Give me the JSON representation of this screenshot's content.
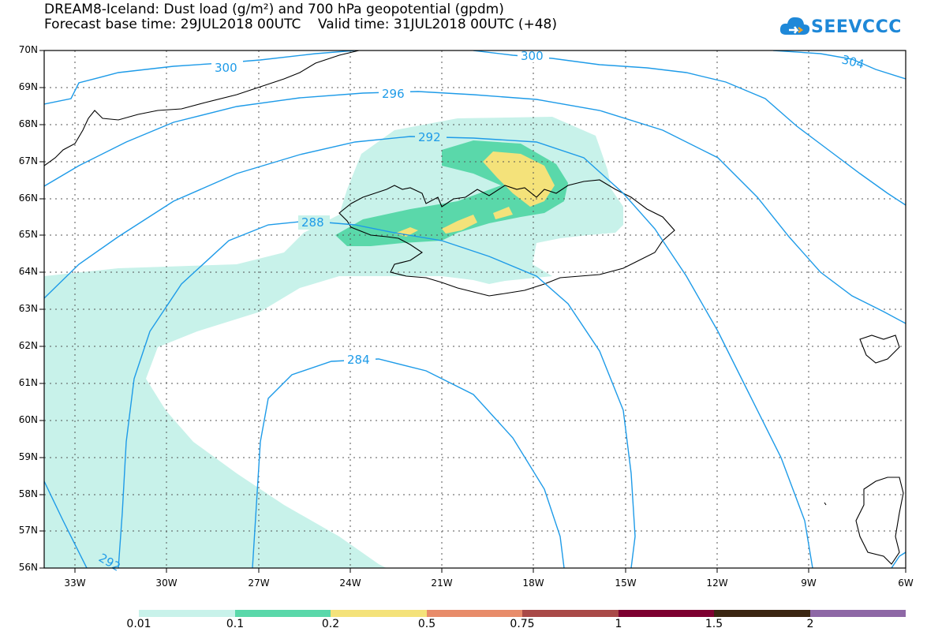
{
  "title_line1": "DREAM8-Iceland: Dust load (g/m²) and 700 hPa geopotential (gpdm)",
  "title_line2": "Forecast base time: 29JUL2018 00UTC    Valid time: 31JUL2018 00UTC (+48)",
  "logo_text": "SEEVCCC",
  "map": {
    "lat_labels": [
      "70N",
      "69N",
      "68N",
      "67N",
      "66N",
      "65N",
      "64N",
      "63N",
      "62N",
      "61N",
      "60N",
      "59N",
      "58N",
      "57N",
      "56N"
    ],
    "lon_labels": [
      "33W",
      "30W",
      "27W",
      "24W",
      "21W",
      "18W",
      "15W",
      "12W",
      "9W",
      "6W"
    ],
    "contour_labels": [
      "300",
      "300",
      "304",
      "296",
      "292",
      "288",
      "284",
      "292"
    ],
    "colors": {
      "contour": "#1e9be8",
      "coast": "#000000",
      "level_0_01": "#c8f2ea",
      "level_0_1": "#5ad8aa",
      "level_0_2": "#f4e27a"
    }
  },
  "colorbar": {
    "labels": [
      "0.01",
      "0.1",
      "0.2",
      "0.5",
      "0.75",
      "1",
      "1.5",
      "2"
    ],
    "colors": [
      "#c8f2ea",
      "#5ad8aa",
      "#f4e27a",
      "#e88c6a",
      "#a94a48",
      "#7d0030",
      "#3b2612",
      "#8e68a6"
    ]
  }
}
